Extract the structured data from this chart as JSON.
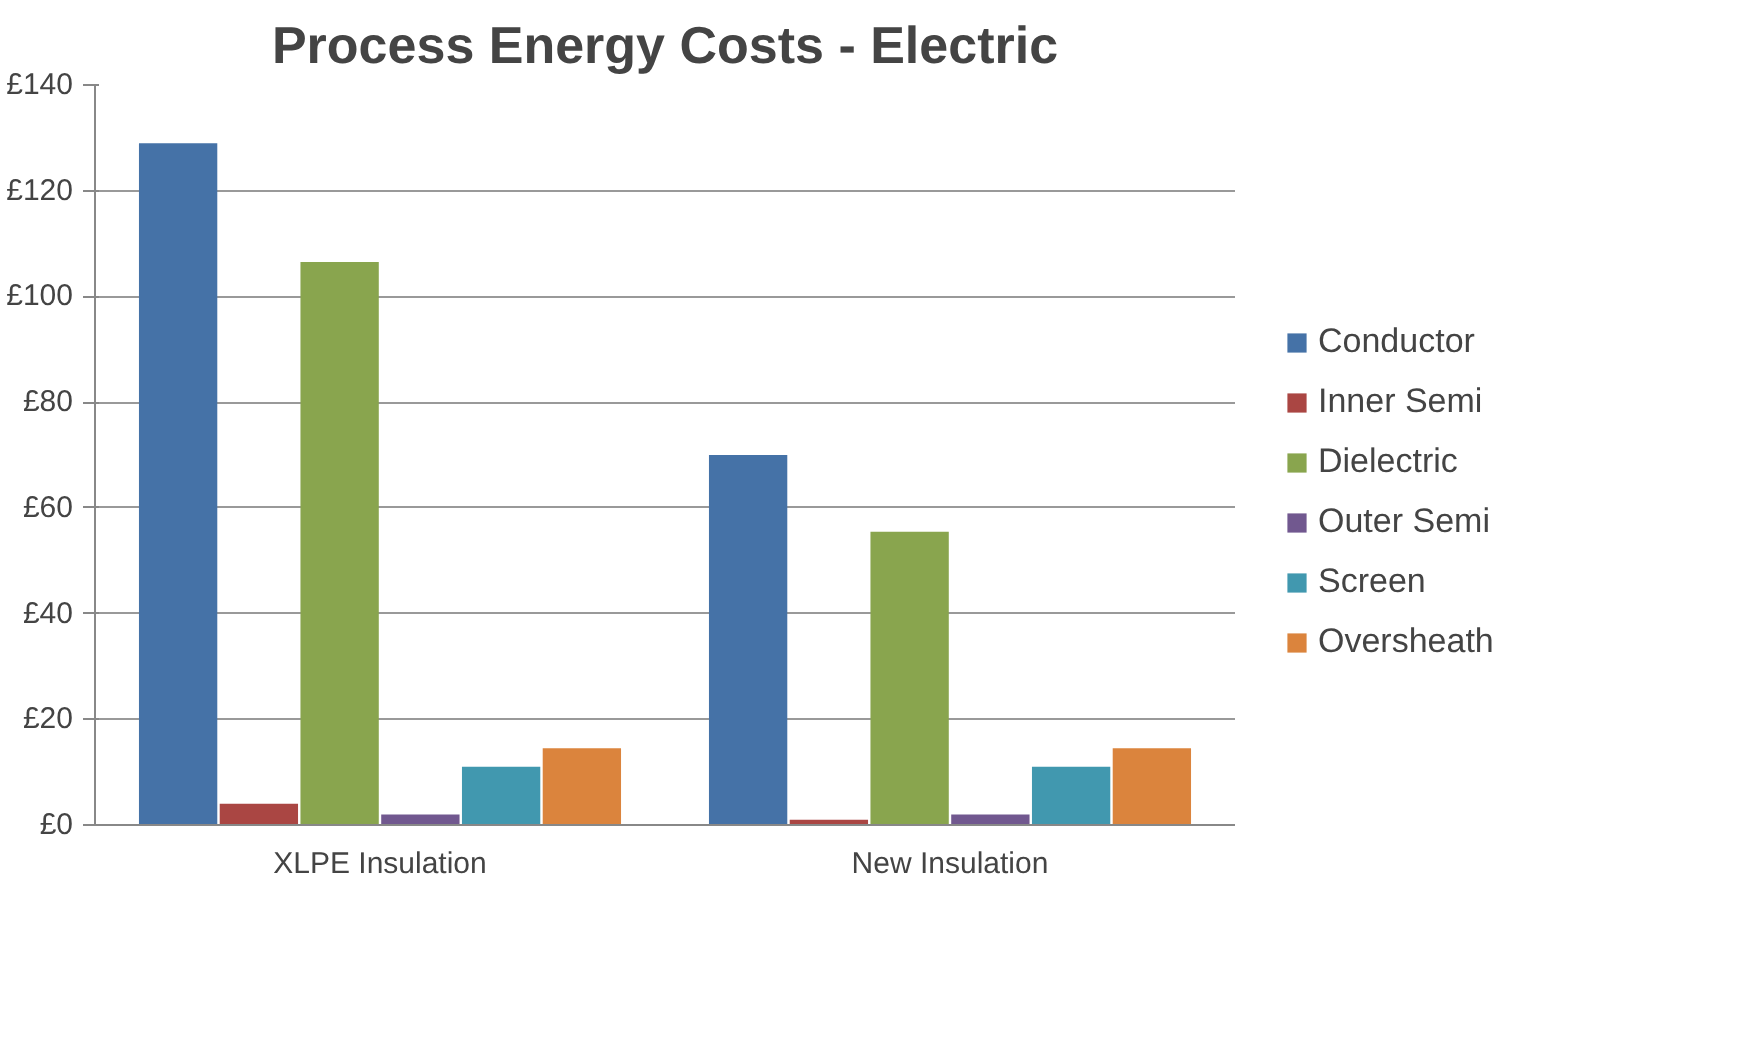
{
  "chart_data": {
    "type": "bar",
    "title": "Process Energy Costs - Electric",
    "categories": [
      "XLPE Insulation",
      "New Insulation"
    ],
    "series": [
      {
        "name": "Conductor",
        "color": "#4572a7",
        "values": [
          129,
          70
        ]
      },
      {
        "name": "Inner Semi",
        "color": "#aa4643",
        "values": [
          4,
          1
        ]
      },
      {
        "name": "Dielectric",
        "color": "#89a54e",
        "values": [
          106.5,
          55.5
        ]
      },
      {
        "name": "Outer Semi",
        "color": "#71588f",
        "values": [
          2,
          2
        ]
      },
      {
        "name": "Screen",
        "color": "#4198af",
        "values": [
          11,
          11
        ]
      },
      {
        "name": "Oversheath",
        "color": "#db843d",
        "values": [
          14.5,
          14.5
        ]
      }
    ],
    "ylim": [
      0,
      140
    ],
    "yticks": [
      {
        "value": 0,
        "label": "£0"
      },
      {
        "value": 20,
        "label": "£20"
      },
      {
        "value": 40,
        "label": "£40"
      },
      {
        "value": 60,
        "label": "£60"
      },
      {
        "value": 80,
        "label": "£80"
      },
      {
        "value": 100,
        "label": "£100"
      },
      {
        "value": 120,
        "label": "£120"
      },
      {
        "value": 140,
        "label": "£140"
      }
    ],
    "grid": "y",
    "legend": "right"
  }
}
